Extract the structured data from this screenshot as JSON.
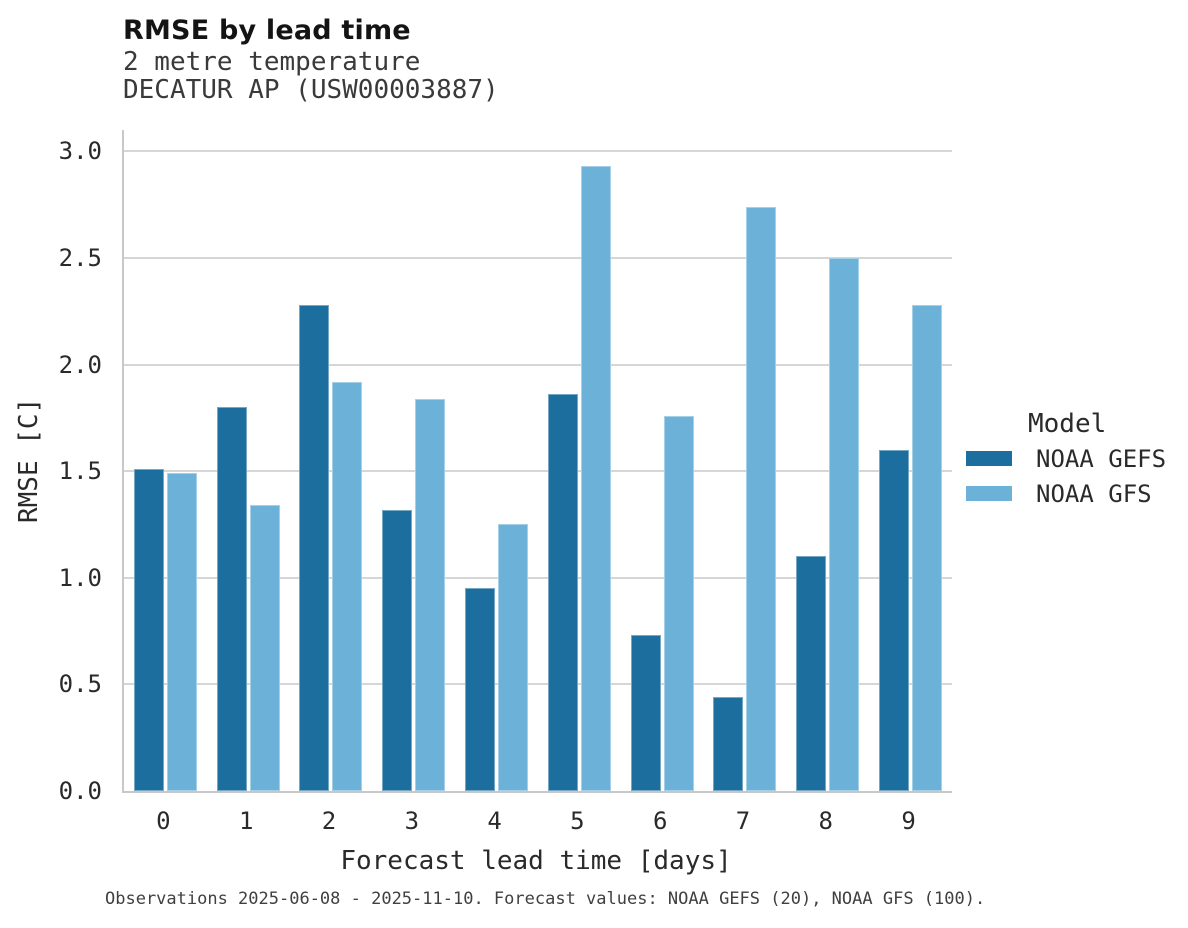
{
  "chart_data": {
    "type": "bar",
    "title": "RMSE by lead time",
    "subtitle": [
      "2 metre temperature",
      "DECATUR AP (USW00003887)"
    ],
    "categories": [
      "0",
      "1",
      "2",
      "3",
      "4",
      "5",
      "6",
      "7",
      "8",
      "9"
    ],
    "series": [
      {
        "name": "NOAA GEFS",
        "color": "#1b6e9d",
        "values": [
          1.51,
          1.8,
          2.28,
          1.32,
          0.95,
          1.86,
          0.73,
          0.44,
          1.1,
          1.6
        ]
      },
      {
        "name": "NOAA GFS",
        "color": "#6cb1d8",
        "values": [
          1.49,
          1.34,
          1.92,
          1.84,
          1.25,
          2.93,
          1.76,
          2.74,
          2.5,
          2.28
        ]
      }
    ],
    "xlabel": "Forecast lead time [days]",
    "ylabel": "RMSE [C]",
    "ylim": [
      0,
      3.1
    ],
    "yticks": [
      0,
      0.5,
      1,
      1.5,
      2,
      2.5,
      3
    ],
    "grid": "horizontal",
    "legend_title": "Model",
    "legend_position": "right"
  },
  "footer": {
    "note": "Observations 2025-06-08 - 2025-11-10. Forecast values: NOAA GEFS (20), NOAA GFS (100)."
  },
  "colors": {
    "series_dark": "#1b6e9d",
    "series_light": "#6cb1d8",
    "gridline": "#d6d6d6",
    "spine": "#c8c8c8"
  }
}
